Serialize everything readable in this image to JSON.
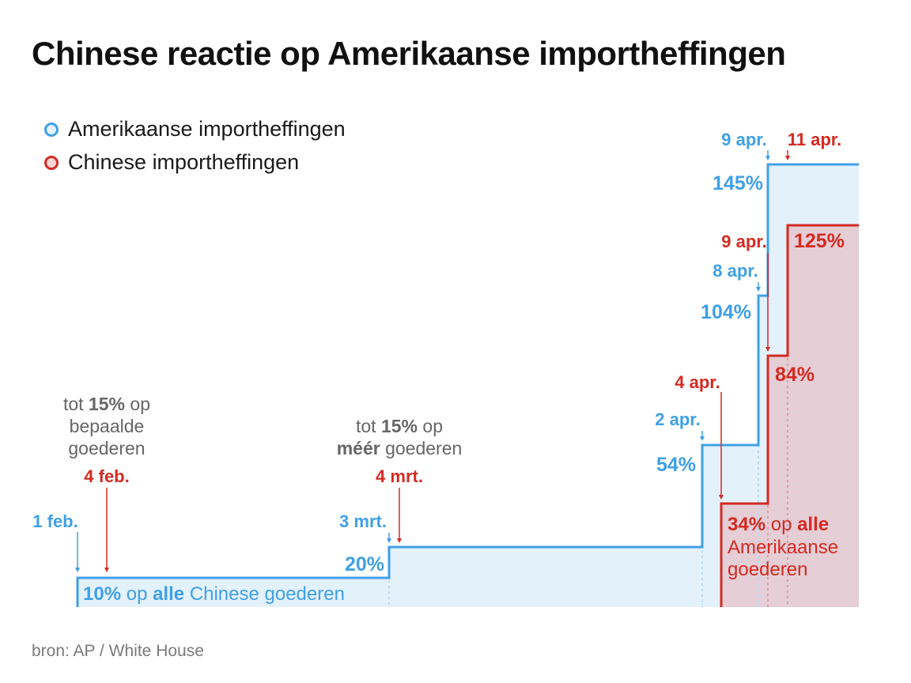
{
  "title": "Chinese reactie op Amerikaanse importheffingen",
  "source": "bron: AP / White House",
  "colors": {
    "us_line": "#3fa0e6",
    "us_fill": "#e3f1fb",
    "cn_line": "#d42a22",
    "cn_fill": "#e5ced6",
    "note": "#666666"
  },
  "legend": [
    {
      "label": "Amerikaanse importheffingen",
      "series": "us"
    },
    {
      "label": "Chinese importheffingen",
      "series": "cn"
    }
  ],
  "chart_data": {
    "type": "area",
    "step": true,
    "x_dates": [
      "1 feb.",
      "3 mrt.",
      "2 apr.",
      "8 apr.",
      "9 apr.",
      "11 apr."
    ],
    "series": [
      {
        "name": "Amerikaanse importheffingen",
        "key": "us",
        "steps": [
          {
            "date": "1 feb.",
            "value": 10
          },
          {
            "date": "3 mrt.",
            "value": 20
          },
          {
            "date": "2 apr.",
            "value": 54
          },
          {
            "date": "8 apr.",
            "value": 104
          },
          {
            "date": "9 apr.",
            "value": 145
          }
        ]
      },
      {
        "name": "Chinese importheffingen",
        "key": "cn",
        "steps": [
          {
            "date": "4 apr.",
            "value": 34
          },
          {
            "date": "9 apr.",
            "value": 84
          },
          {
            "date": "11 apr.",
            "value": 125
          }
        ]
      }
    ],
    "annotations": {
      "us_1feb": {
        "date": "1 feb.",
        "value_label": "10%",
        "text_mid": " op ",
        "text_bold": "alle",
        "text_end": " Chinese goederen"
      },
      "us_3mrt": {
        "date": "3 mrt.",
        "value_label": "20%"
      },
      "us_2apr": {
        "date": "2 apr.",
        "value_label": "54%"
      },
      "us_8apr": {
        "date": "8 apr.",
        "value_label": "104%"
      },
      "us_9apr": {
        "date": "9 apr.",
        "value_label": "145%"
      },
      "cn_4feb": {
        "date": "4 feb.",
        "note_pre": "tot ",
        "note_bold": "15%",
        "note_post": " op",
        "note_line2": "bepaalde",
        "note_line3": "goederen"
      },
      "cn_4mrt": {
        "date": "4 mrt.",
        "note_pre": "tot ",
        "note_bold": "15%",
        "note_post": " op",
        "note2_bold": "méér",
        "note2_post": " goederen"
      },
      "cn_4apr": {
        "date": "4 apr.",
        "value_label": "34%",
        "text_mid": " op ",
        "text_bold": "alle",
        "line2": "Amerikaanse",
        "line3": "goederen"
      },
      "cn_9apr": {
        "date": "9 apr.",
        "value_label": "84%"
      },
      "cn_11apr": {
        "date": "11 apr.",
        "value_label": "125%"
      }
    }
  }
}
